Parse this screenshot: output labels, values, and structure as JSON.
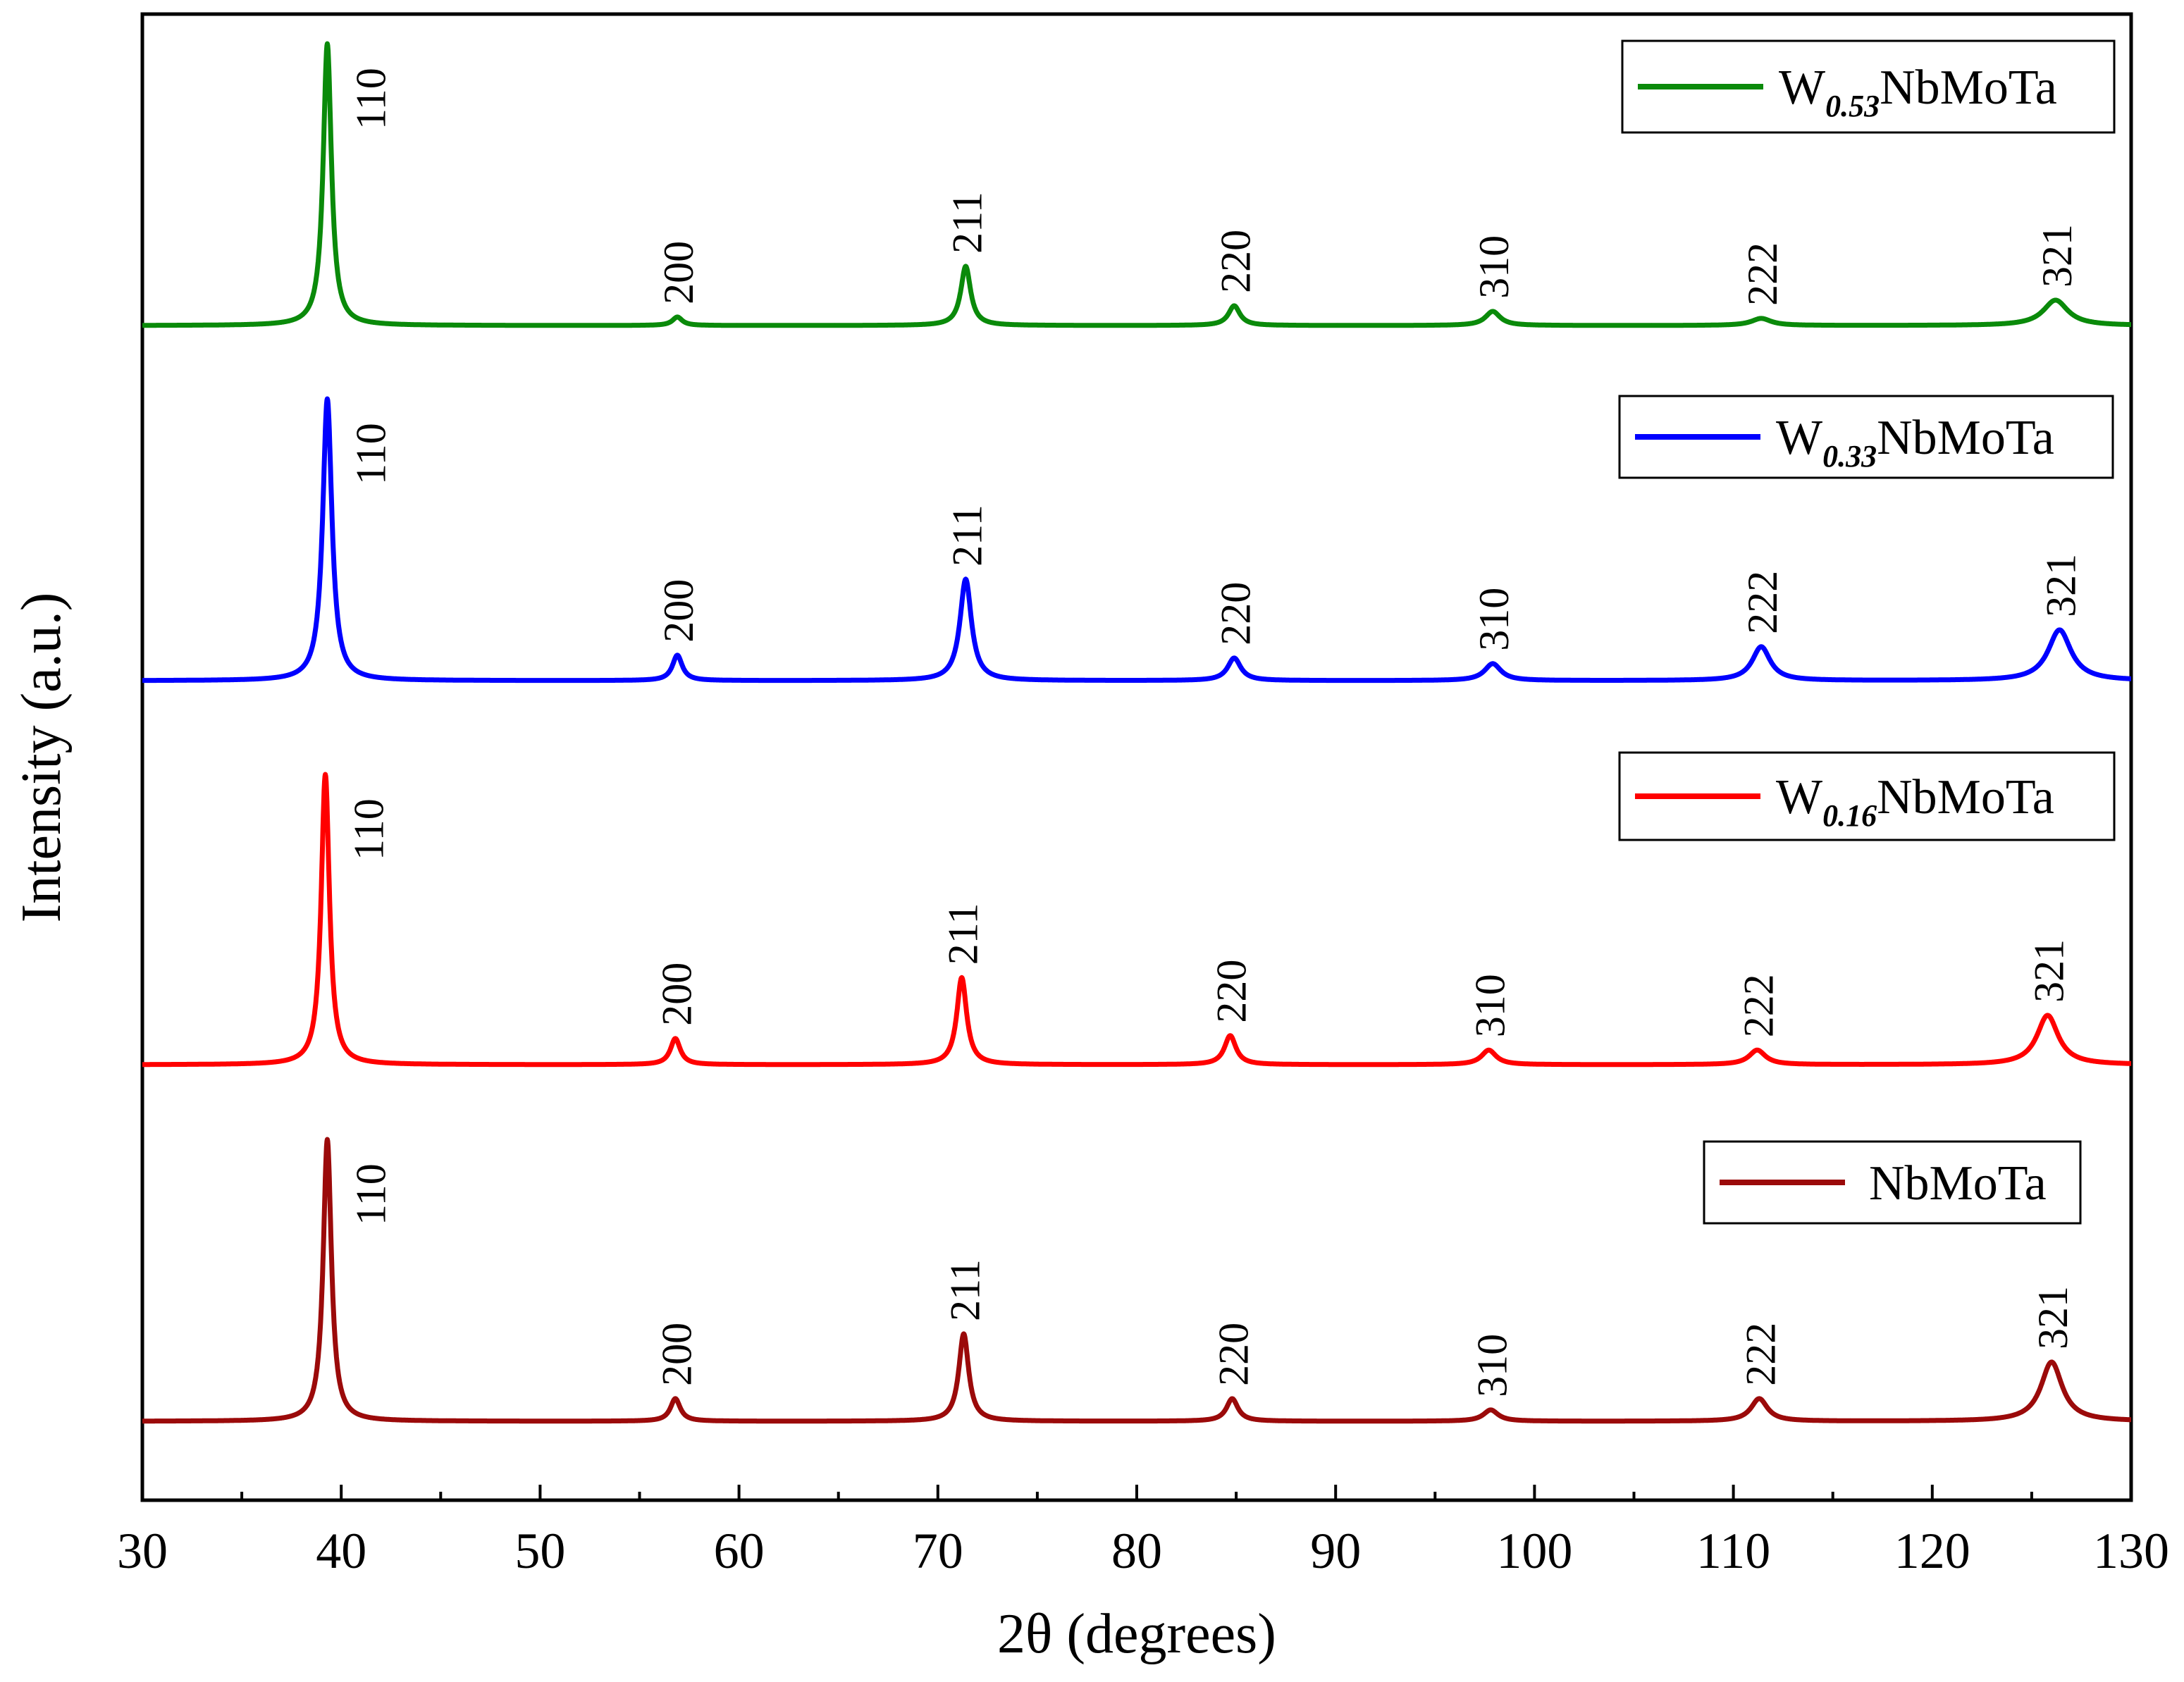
{
  "chart_data": {
    "type": "line",
    "title": "",
    "xlabel": "2θ (degrees)",
    "ylabel": "Intensity (a.u.)",
    "xlim": [
      30,
      130
    ],
    "xticks": [
      "30",
      "40",
      "50",
      "60",
      "70",
      "80",
      "90",
      "100",
      "110",
      "120",
      "130"
    ],
    "xtick_values": [
      30,
      40,
      50,
      60,
      70,
      80,
      90,
      100,
      110,
      120,
      130
    ],
    "y_ticks_shown": false,
    "grid": false,
    "legend_position": "top-right of each trace",
    "peak_positions": {
      "110": 39.3,
      "200": 56.8,
      "211": 71.3,
      "220": 84.8,
      "310": 97.8,
      "222": 111.3,
      "321": 126.0
    },
    "series": [
      {
        "name": "W0.53NbMoTa",
        "legend_main_1": "W",
        "legend_sub": "0.53",
        "legend_main_2": "NbMoTa",
        "color": "#0a8a0a",
        "offset": 3,
        "peaks": [
          {
            "hkl": "110",
            "x": 39.3,
            "intensity": 100,
            "width": 0.25
          },
          {
            "hkl": "200",
            "x": 56.9,
            "intensity": 3,
            "width": 0.3
          },
          {
            "hkl": "211",
            "x": 71.4,
            "intensity": 21,
            "width": 0.3
          },
          {
            "hkl": "220",
            "x": 84.9,
            "intensity": 7,
            "width": 0.35
          },
          {
            "hkl": "310",
            "x": 97.9,
            "intensity": 5,
            "width": 0.45
          },
          {
            "hkl": "222",
            "x": 111.4,
            "intensity": 2.5,
            "width": 0.6
          },
          {
            "hkl": "321",
            "x": 126.2,
            "intensity": 9,
            "width": 0.75
          }
        ]
      },
      {
        "name": "W0.33NbMoTa",
        "legend_main_1": "W",
        "legend_sub": "0.33",
        "legend_main_2": "NbMoTa",
        "color": "#0000ff",
        "offset": 2,
        "peaks": [
          {
            "hkl": "110",
            "x": 39.3,
            "intensity": 100,
            "width": 0.28
          },
          {
            "hkl": "200",
            "x": 56.9,
            "intensity": 9,
            "width": 0.3
          },
          {
            "hkl": "211",
            "x": 71.4,
            "intensity": 36,
            "width": 0.35
          },
          {
            "hkl": "220",
            "x": 84.9,
            "intensity": 8,
            "width": 0.4
          },
          {
            "hkl": "310",
            "x": 97.9,
            "intensity": 6,
            "width": 0.5
          },
          {
            "hkl": "222",
            "x": 111.4,
            "intensity": 12,
            "width": 0.55
          },
          {
            "hkl": "321",
            "x": 126.4,
            "intensity": 18,
            "width": 0.7
          }
        ]
      },
      {
        "name": "W0.16NbMoTa",
        "legend_main_1": "W",
        "legend_sub": "0.16",
        "legend_main_2": "NbMoTa",
        "color": "#ff0000",
        "offset": 1,
        "peaks": [
          {
            "hkl": "110",
            "x": 39.2,
            "intensity": 100,
            "width": 0.25
          },
          {
            "hkl": "200",
            "x": 56.8,
            "intensity": 9,
            "width": 0.3
          },
          {
            "hkl": "211",
            "x": 71.2,
            "intensity": 30,
            "width": 0.3
          },
          {
            "hkl": "220",
            "x": 84.7,
            "intensity": 10,
            "width": 0.35
          },
          {
            "hkl": "310",
            "x": 97.7,
            "intensity": 5,
            "width": 0.45
          },
          {
            "hkl": "222",
            "x": 111.2,
            "intensity": 5,
            "width": 0.5
          },
          {
            "hkl": "321",
            "x": 125.8,
            "intensity": 17,
            "width": 0.65
          }
        ]
      },
      {
        "name": "NbMoTa",
        "legend_main_1": "",
        "legend_sub": "",
        "legend_main_2": "NbMoTa",
        "color": "#9b0a0a",
        "offset": 0,
        "peaks": [
          {
            "hkl": "110",
            "x": 39.3,
            "intensity": 100,
            "width": 0.25
          },
          {
            "hkl": "200",
            "x": 56.8,
            "intensity": 8,
            "width": 0.3
          },
          {
            "hkl": "211",
            "x": 71.3,
            "intensity": 31,
            "width": 0.3
          },
          {
            "hkl": "220",
            "x": 84.8,
            "intensity": 8,
            "width": 0.35
          },
          {
            "hkl": "310",
            "x": 97.8,
            "intensity": 4,
            "width": 0.45
          },
          {
            "hkl": "222",
            "x": 111.3,
            "intensity": 8,
            "width": 0.5
          },
          {
            "hkl": "321",
            "x": 126.0,
            "intensity": 21,
            "width": 0.65
          }
        ]
      }
    ]
  }
}
